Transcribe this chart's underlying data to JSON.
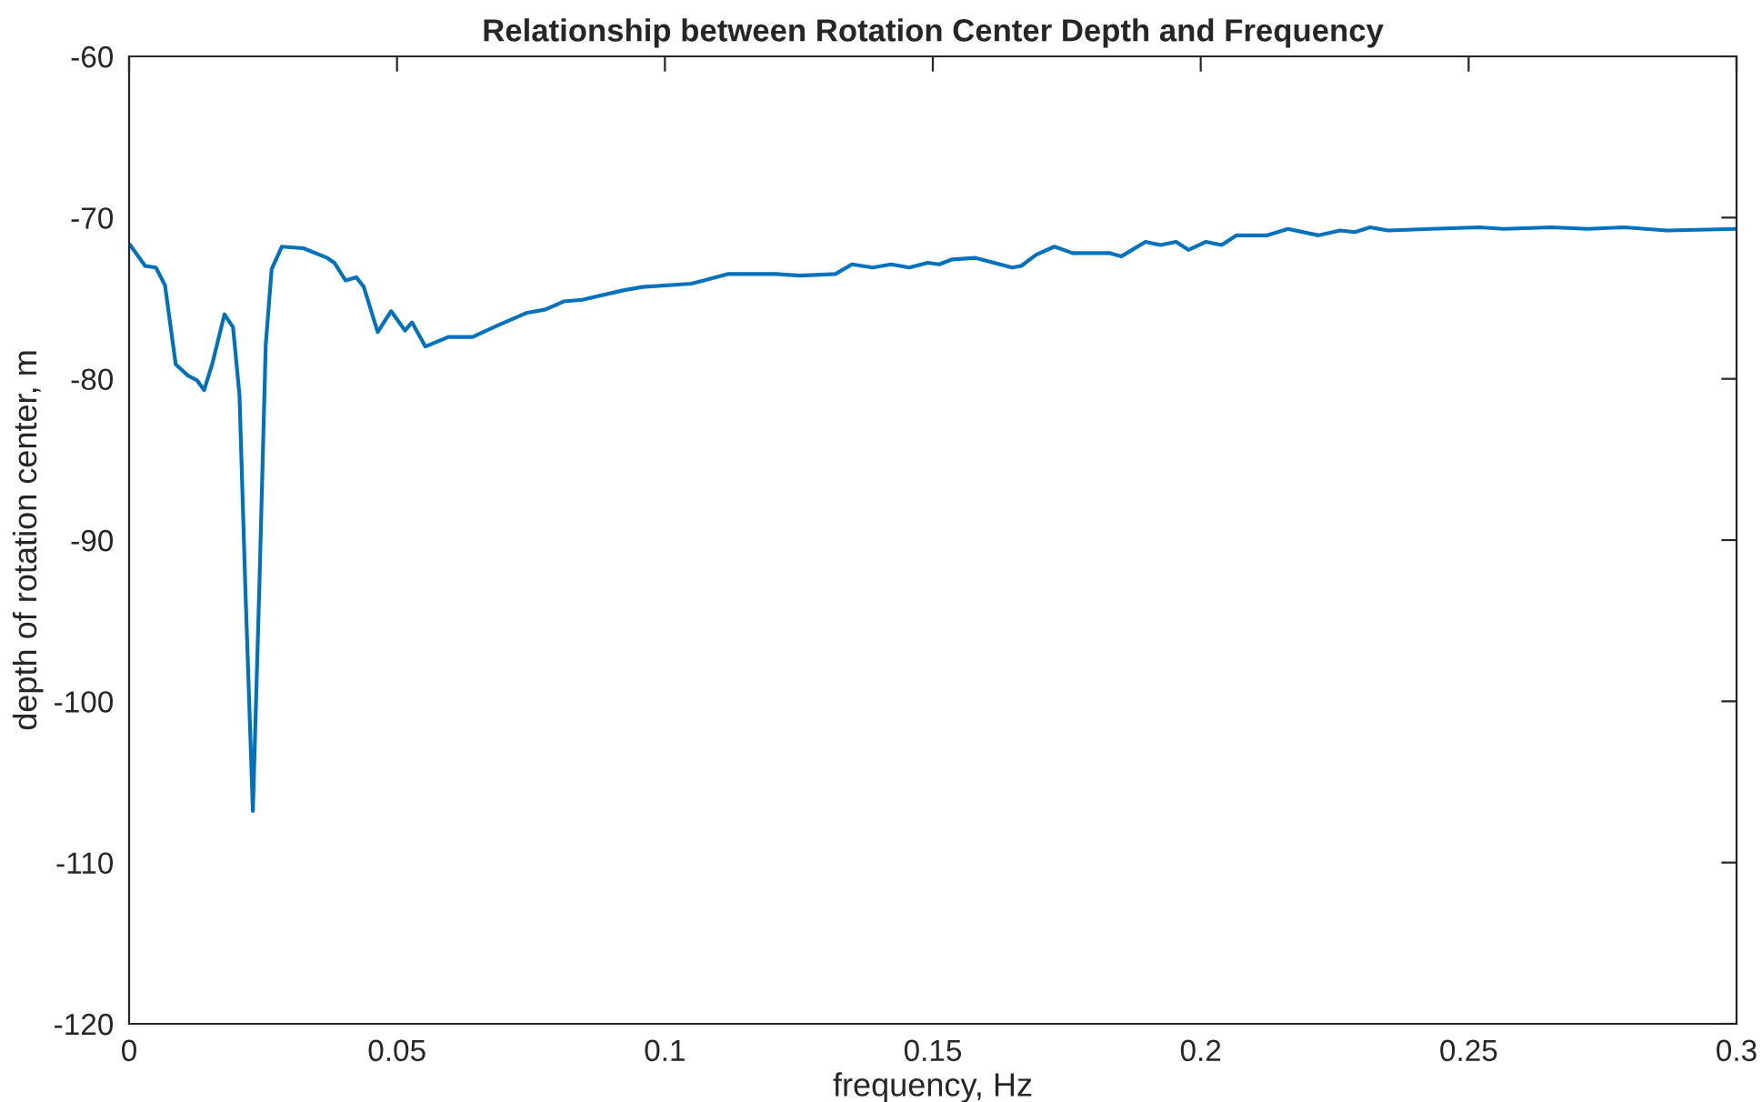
{
  "chart_data": {
    "type": "line",
    "title": "Relationship between Rotation Center Depth and Frequency",
    "xlabel": "frequency, Hz",
    "ylabel": "depth of rotation center, m",
    "xlim": [
      0,
      0.3
    ],
    "xticks": [
      0,
      0.05,
      0.1,
      0.15,
      0.2,
      0.25,
      0.3
    ],
    "ylim": [
      -120,
      -60
    ],
    "yticks": [
      -120,
      -110,
      -100,
      -90,
      -80,
      -70,
      -60
    ],
    "grid": false,
    "series": [
      {
        "color": "#0072bd",
        "x": [
          0.0002,
          0.003,
          0.005,
          0.0067,
          0.0087,
          0.011,
          0.0127,
          0.014,
          0.0155,
          0.0178,
          0.0194,
          0.0206,
          0.0217,
          0.0231,
          0.0243,
          0.0255,
          0.0266,
          0.0285,
          0.0325,
          0.037,
          0.0383,
          0.0404,
          0.0424,
          0.0438,
          0.0464,
          0.0489,
          0.0515,
          0.0528,
          0.0553,
          0.0596,
          0.0641,
          0.0687,
          0.0743,
          0.0777,
          0.0811,
          0.0845,
          0.0924,
          0.0958,
          0.1049,
          0.1117,
          0.1207,
          0.1252,
          0.1318,
          0.1349,
          0.1388,
          0.1422,
          0.1456,
          0.149,
          0.1512,
          0.1535,
          0.158,
          0.1614,
          0.1648,
          0.1665,
          0.1693,
          0.1727,
          0.1761,
          0.1806,
          0.1829,
          0.1852,
          0.1897,
          0.1925,
          0.1954,
          0.1977,
          0.201,
          0.2039,
          0.2067,
          0.2124,
          0.2163,
          0.222,
          0.226,
          0.2288,
          0.2316,
          0.235,
          0.2429,
          0.252,
          0.2565,
          0.2655,
          0.2723,
          0.2791,
          0.287,
          0.3
        ],
        "values": [
          -71.7,
          -73.0,
          -73.1,
          -74.2,
          -79.1,
          -79.8,
          -80.1,
          -80.7,
          -79.1,
          -76.0,
          -76.8,
          -81.0,
          -93.0,
          -106.8,
          -93.0,
          -77.9,
          -73.2,
          -71.8,
          -71.9,
          -72.5,
          -72.8,
          -73.9,
          -73.7,
          -74.3,
          -77.1,
          -75.8,
          -77.0,
          -76.5,
          -78.0,
          -77.4,
          -77.4,
          -76.7,
          -75.9,
          -75.7,
          -75.2,
          -75.1,
          -74.5,
          -74.3,
          -74.1,
          -73.5,
          -73.5,
          -73.6,
          -73.5,
          -72.9,
          -73.1,
          -72.9,
          -73.1,
          -72.8,
          -72.9,
          -72.6,
          -72.5,
          -72.8,
          -73.1,
          -73.0,
          -72.3,
          -71.8,
          -72.2,
          -72.2,
          -72.2,
          -72.4,
          -71.5,
          -71.7,
          -71.5,
          -72.0,
          -71.5,
          -71.7,
          -71.1,
          -71.1,
          -70.7,
          -71.1,
          -70.8,
          -70.9,
          -70.6,
          -70.8,
          -70.7,
          -70.6,
          -70.7,
          -70.6,
          -70.7,
          -70.6,
          -70.8,
          -70.7
        ]
      }
    ]
  }
}
